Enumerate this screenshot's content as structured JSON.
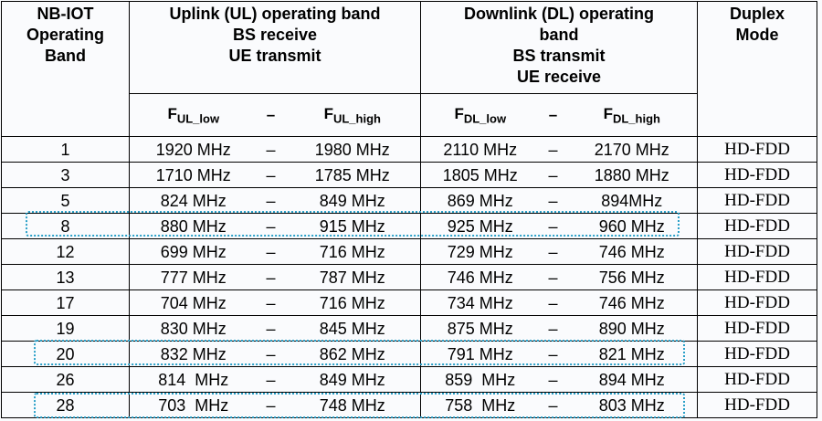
{
  "header": {
    "band": [
      "NB-IOT",
      "Operating",
      "Band"
    ],
    "uplink": [
      "Uplink (UL) operating band",
      "BS receive",
      "UE transmit"
    ],
    "downlink": [
      "Downlink (DL) operating",
      "band",
      "BS transmit",
      "UE receive"
    ],
    "duplex": [
      "Duplex",
      "Mode"
    ],
    "sub": [
      {
        "main": "F",
        "sub": "UL_low"
      },
      {
        "main": "–"
      },
      {
        "main": "F",
        "sub": "UL_high"
      },
      {
        "main": "F",
        "sub": "DL_low"
      },
      {
        "main": "–"
      },
      {
        "main": "F",
        "sub": "DL_high"
      }
    ]
  },
  "table": {
    "rows": [
      [
        "1",
        "1920 MHz",
        "–",
        "1980 MHz",
        "2110 MHz",
        "–",
        "2170 MHz",
        "HD-FDD"
      ],
      [
        "3",
        "1710 MHz",
        "–",
        "1785 MHz",
        "1805 MHz",
        "–",
        "1880 MHz",
        "HD-FDD"
      ],
      [
        "5",
        "824 MHz",
        "–",
        "849 MHz",
        "869 MHz",
        "–",
        "894MHz",
        "HD-FDD"
      ],
      [
        "8",
        "880 MHz",
        "–",
        "915 MHz",
        "925 MHz",
        "–",
        "960 MHz",
        "HD-FDD"
      ],
      [
        "12",
        "699 MHz",
        "–",
        "716 MHz",
        "729 MHz",
        "–",
        "746 MHz",
        "HD-FDD"
      ],
      [
        "13",
        "777 MHz",
        "–",
        "787 MHz",
        "746 MHz",
        "–",
        "756 MHz",
        "HD-FDD"
      ],
      [
        "17",
        "704 MHz",
        "–",
        "716 MHz",
        "734 MHz",
        "–",
        "746 MHz",
        "HD-FDD"
      ],
      [
        "19",
        "830 MHz",
        "–",
        "845 MHz",
        "875 MHz",
        "–",
        "890 MHz",
        "HD-FDD"
      ],
      [
        "20",
        "832 MHz",
        "–",
        "862 MHz",
        "791 MHz",
        "–",
        "821 MHz",
        "HD-FDD"
      ],
      [
        "26",
        "814  MHz",
        "–",
        "849 MHz",
        "859  MHz",
        "–",
        "894 MHz",
        "HD-FDD"
      ],
      [
        "28",
        "703  MHz",
        "–",
        "748 MHz",
        "758  MHz",
        "–",
        "803 MHz",
        "HD-FDD"
      ]
    ]
  }
}
